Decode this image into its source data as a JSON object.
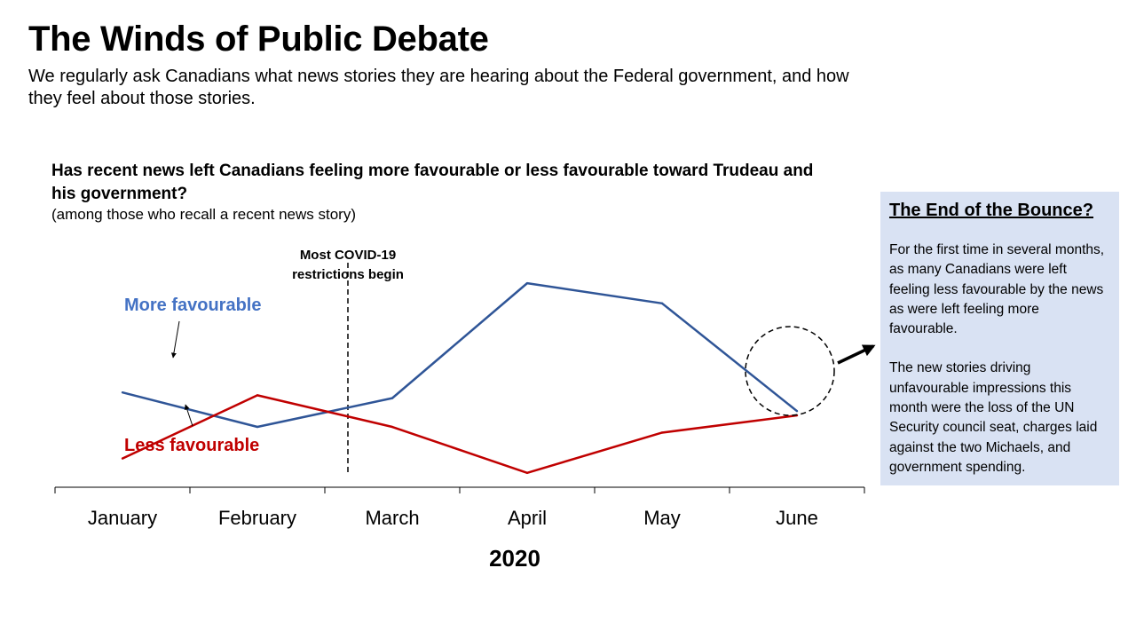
{
  "page": {
    "title": "The Winds of Public Debate",
    "subtitle": "We regularly ask Canadians what news stories they are hearing about the Federal government, and how they feel about those stories."
  },
  "chart_data": {
    "type": "line",
    "title": "Has recent news left Canadians feeling more favourable or less favourable toward Trudeau and his government?",
    "subtitle": "(among those who recall a recent news story)",
    "categories": [
      "January",
      "February",
      "March",
      "April",
      "May",
      "June"
    ],
    "xlabel": "2020",
    "ylabel": "",
    "series": [
      {
        "name": "More favourable",
        "color": "#2f5597",
        "label_color": "#4472c4",
        "values": [
          0.66,
          0.42,
          0.62,
          1.42,
          1.28,
          0.53
        ]
      },
      {
        "name": "Less favourable",
        "color": "#c00000",
        "label_color": "#c00000",
        "values": [
          0.2,
          0.64,
          0.42,
          0.1,
          0.38,
          0.5
        ]
      }
    ],
    "ylim": [
      0,
      1.6
    ],
    "grid": false,
    "legend": "inline labels",
    "annotations": [
      {
        "text_lines": [
          "Most COVID-19",
          "restrictions begin"
        ],
        "between": [
          "February",
          "March"
        ]
      }
    ],
    "highlight": {
      "category": "June",
      "shape": "dashed-circle"
    }
  },
  "sidebar": {
    "title": "The End of the Bounce?",
    "paragraphs": [
      "For the first time in several months, as many Canadians were left feeling less favourable by the news as were left feeling more favourable.",
      "The new stories driving unfavourable impressions this month were the loss of the UN Security council seat, charges laid against the two Michaels, and government spending."
    ]
  }
}
